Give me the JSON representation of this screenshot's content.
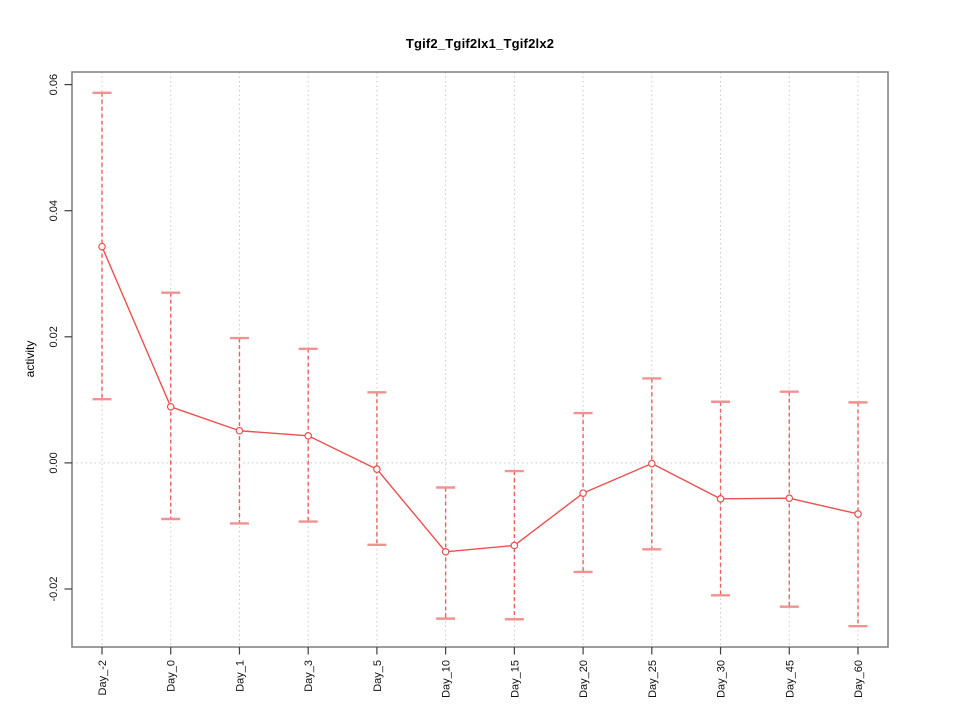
{
  "title": "Tgif2_Tgif2lx1_Tgif2lx2",
  "chart_data": {
    "type": "line",
    "title": "Tgif2_Tgif2lx1_Tgif2lx2",
    "xlabel": "",
    "ylabel": "activity",
    "legend": null,
    "marker": "open-circle",
    "error_bars": true,
    "grid": {
      "vertical_dotted_at_each_category": true,
      "horizontal_dotted_at_zero_only": true
    },
    "categories": [
      "Day_-2",
      "Day_0",
      "Day_1",
      "Day_3",
      "Day_5",
      "Day_10",
      "Day_15",
      "Day_20",
      "Day_25",
      "Day_30",
      "Day_45",
      "Day_60"
    ],
    "series": [
      {
        "name": "Tgif2_Tgif2lx1_Tgif2lx2",
        "values": [
          0.0343,
          0.0089,
          0.0051,
          0.0043,
          -0.001,
          -0.0141,
          -0.0131,
          -0.0048,
          -0.0001,
          -0.0057,
          -0.0056,
          -0.0081
        ],
        "err_high": [
          0.0587,
          0.027,
          0.0198,
          0.0181,
          0.0112,
          -0.0039,
          -0.0013,
          0.0079,
          0.0134,
          0.0097,
          0.0113,
          0.0096
        ],
        "err_low": [
          0.0101,
          -0.0089,
          -0.0096,
          -0.0093,
          -0.013,
          -0.0247,
          -0.0248,
          -0.0173,
          -0.0137,
          -0.021,
          -0.0228,
          -0.0259
        ]
      }
    ],
    "ytick_values": [
      -0.02,
      0,
      0.02,
      0.04,
      0.06
    ],
    "ytick_labels": [
      "-0.02",
      "0.00",
      "0.02",
      "0.04",
      "0.06"
    ],
    "ylim": [
      -0.0292,
      0.062
    ],
    "colors": {
      "series": "#e85151",
      "error_bar": "#ec6060",
      "error_cap": "#f29191",
      "grid": "#c9c9c9",
      "frame": "#7d7d7d",
      "tick": "#3f3f3f",
      "text": "#111111",
      "background": "#ffffff"
    }
  }
}
